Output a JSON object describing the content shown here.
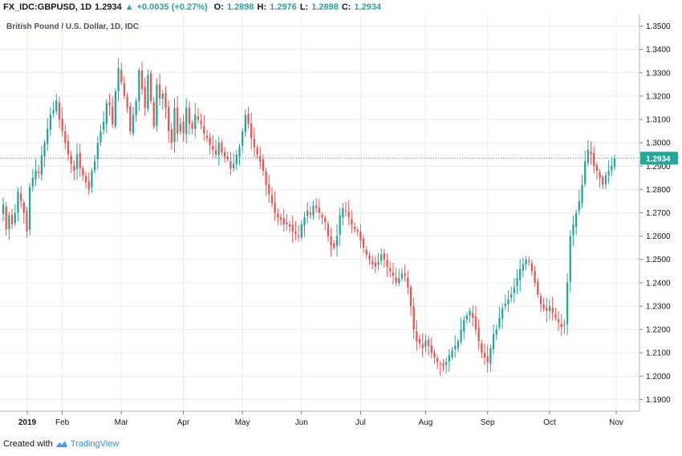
{
  "header": {
    "symbol": "FX_IDC:GBPUSD, 1D",
    "last": "1.2934",
    "change_arrow": "▲",
    "change": "+0.0035 (+0.27%)",
    "o_label": "O:",
    "o_value": "1.2898",
    "h_label": "H:",
    "h_value": "1.2976",
    "l_label": "L:",
    "l_value": "1.2898",
    "c_label": "C:",
    "c_value": "1.2934"
  },
  "footer": {
    "created_with": "Created with",
    "brand": "TradingView"
  },
  "chart_data": {
    "type": "candlestick",
    "title": "British Pound / U.S. Dollar, 1D, IDC",
    "ylim": [
      1.185,
      1.355
    ],
    "y_ticks": [
      "1.3500",
      "1.3400",
      "1.3300",
      "1.3200",
      "1.3100",
      "1.3000",
      "1.2900",
      "1.2800",
      "1.2700",
      "1.2600",
      "1.2500",
      "1.2400",
      "1.2300",
      "1.2200",
      "1.2100",
      "1.2000",
      "1.1900"
    ],
    "x_tick_labels": [
      "2019",
      "Feb",
      "Mar",
      "Apr",
      "May",
      "Jun",
      "Jul",
      "Aug",
      "Sep",
      "Oct",
      "Nov"
    ],
    "last_price": 1.2934,
    "last_price_label": "1.2934",
    "colors": {
      "up": "#26a69a",
      "down": "#ef5350",
      "grid": "#e9ecf2",
      "price_line": "#26a69a"
    },
    "grid": true,
    "close_series": [
      {
        "month": "2019",
        "closes": [
          1.2735,
          1.263,
          1.269,
          1.265,
          1.27,
          1.279,
          1.275,
          1.27,
          1.262,
          1.281,
          1.285,
          1.288,
          1.287,
          1.2945,
          1.3,
          1.306,
          1.312,
          1.314,
          1.318,
          1.31
        ]
      },
      {
        "month": "Feb",
        "closes": [
          1.305,
          1.3,
          1.295,
          1.291,
          1.288,
          1.295,
          1.289,
          1.286,
          1.283,
          1.28,
          1.288,
          1.292,
          1.3,
          1.305,
          1.309,
          1.317,
          1.316,
          1.308,
          1.322,
          1.332
        ]
      },
      {
        "month": "Mar",
        "closes": [
          1.326,
          1.32,
          1.315,
          1.305,
          1.312,
          1.318,
          1.331,
          1.323,
          1.315,
          1.329,
          1.318,
          1.307,
          1.325,
          1.319,
          1.321,
          1.315,
          1.305,
          1.3,
          1.315,
          1.304,
          1.308
        ]
      },
      {
        "month": "Apr",
        "closes": [
          1.304,
          1.315,
          1.308,
          1.306,
          1.312,
          1.31,
          1.308,
          1.304,
          1.302,
          1.299,
          1.297,
          1.295,
          1.3,
          1.296,
          1.294,
          1.293,
          1.289,
          1.291,
          1.295,
          1.298
        ]
      },
      {
        "month": "May",
        "closes": [
          1.305,
          1.312,
          1.308,
          1.302,
          1.298,
          1.295,
          1.292,
          1.288,
          1.282,
          1.278,
          1.274,
          1.27,
          1.268,
          1.267,
          1.265,
          1.266,
          1.264,
          1.262,
          1.261,
          1.26
        ]
      },
      {
        "month": "Jun",
        "closes": [
          1.265,
          1.268,
          1.271,
          1.269,
          1.273,
          1.272,
          1.27,
          1.268,
          1.266,
          1.26,
          1.256,
          1.255,
          1.26,
          1.269,
          1.272,
          1.271,
          1.268,
          1.265,
          1.263,
          1.262
        ]
      },
      {
        "month": "Jul",
        "closes": [
          1.258,
          1.255,
          1.252,
          1.25,
          1.248,
          1.247,
          1.249,
          1.252,
          1.25,
          1.247,
          1.245,
          1.243,
          1.24,
          1.242,
          1.244,
          1.243,
          1.238,
          1.23,
          1.22,
          1.215,
          1.214,
          1.212
        ]
      },
      {
        "month": "Aug",
        "closes": [
          1.215,
          1.213,
          1.21,
          1.208,
          1.206,
          1.205,
          1.204,
          1.206,
          1.209,
          1.211,
          1.213,
          1.215,
          1.22,
          1.224,
          1.226,
          1.228,
          1.225,
          1.22,
          1.215,
          1.21,
          1.208
        ]
      },
      {
        "month": "Sep",
        "closes": [
          1.206,
          1.212,
          1.218,
          1.22,
          1.225,
          1.229,
          1.231,
          1.233,
          1.235,
          1.238,
          1.242,
          1.246,
          1.248,
          1.25,
          1.249,
          1.245,
          1.24,
          1.235,
          1.231,
          1.229,
          1.228
        ]
      },
      {
        "month": "Oct",
        "closes": [
          1.23,
          1.227,
          1.225,
          1.223,
          1.221,
          1.222,
          1.24,
          1.26,
          1.265,
          1.27,
          1.275,
          1.282,
          1.292,
          1.297,
          1.295,
          1.29,
          1.288,
          1.285,
          1.282,
          1.286,
          1.288,
          1.29,
          1.2934
        ]
      }
    ]
  }
}
